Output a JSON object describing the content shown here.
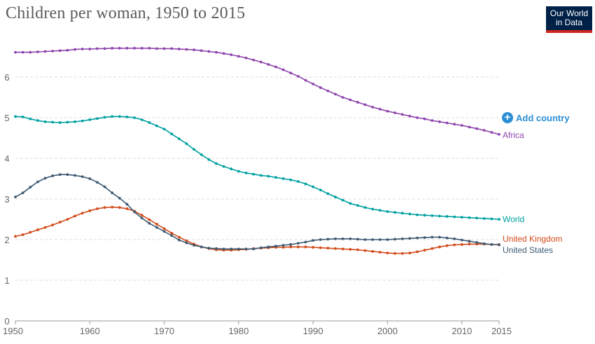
{
  "header": {
    "title": "Children per woman, 1950 to 2015"
  },
  "logo": {
    "line1": "Our World",
    "line2": "in Data"
  },
  "controls": {
    "add_country_label": "Add country",
    "add_icon": "plus-circle-icon"
  },
  "chart_data": {
    "type": "line",
    "title": "Children per woman, 1950 to 2015",
    "xlabel": "",
    "ylabel": "",
    "xlim": [
      1950,
      2015
    ],
    "ylim": [
      0,
      7
    ],
    "x_ticks": [
      1950,
      1960,
      1970,
      1980,
      1990,
      2000,
      2010,
      2015
    ],
    "y_ticks": [
      0,
      1,
      2,
      3,
      4,
      5,
      6
    ],
    "grid": "horizontal-dashed",
    "x": [
      1950,
      1951,
      1952,
      1953,
      1954,
      1955,
      1956,
      1957,
      1958,
      1959,
      1960,
      1961,
      1962,
      1963,
      1964,
      1965,
      1966,
      1967,
      1968,
      1969,
      1970,
      1971,
      1972,
      1973,
      1974,
      1975,
      1976,
      1977,
      1978,
      1979,
      1980,
      1981,
      1982,
      1983,
      1984,
      1985,
      1986,
      1987,
      1988,
      1989,
      1990,
      1991,
      1992,
      1993,
      1994,
      1995,
      1996,
      1997,
      1998,
      1999,
      2000,
      2001,
      2002,
      2003,
      2004,
      2005,
      2006,
      2007,
      2008,
      2009,
      2010,
      2011,
      2012,
      2013,
      2014,
      2015
    ],
    "series": [
      {
        "name": "Africa",
        "color": "#8e44ad",
        "values": [
          6.61,
          6.61,
          6.61,
          6.62,
          6.63,
          6.64,
          6.65,
          6.66,
          6.68,
          6.69,
          6.69,
          6.7,
          6.7,
          6.71,
          6.71,
          6.71,
          6.71,
          6.71,
          6.71,
          6.7,
          6.7,
          6.7,
          6.69,
          6.68,
          6.67,
          6.65,
          6.63,
          6.61,
          6.58,
          6.55,
          6.51,
          6.47,
          6.42,
          6.37,
          6.31,
          6.25,
          6.18,
          6.1,
          6.02,
          5.92,
          5.83,
          5.74,
          5.66,
          5.58,
          5.5,
          5.44,
          5.38,
          5.32,
          5.26,
          5.21,
          5.16,
          5.12,
          5.08,
          5.04,
          5.0,
          4.97,
          4.93,
          4.9,
          4.87,
          4.84,
          4.81,
          4.77,
          4.73,
          4.69,
          4.64,
          4.59
        ]
      },
      {
        "name": "World",
        "color": "#00a0a0",
        "values": [
          5.03,
          5.02,
          4.97,
          4.93,
          4.9,
          4.89,
          4.88,
          4.89,
          4.9,
          4.92,
          4.95,
          4.98,
          5.01,
          5.03,
          5.03,
          5.02,
          5.0,
          4.95,
          4.88,
          4.8,
          4.72,
          4.6,
          4.48,
          4.36,
          4.22,
          4.09,
          3.97,
          3.87,
          3.8,
          3.74,
          3.68,
          3.64,
          3.61,
          3.58,
          3.56,
          3.53,
          3.5,
          3.47,
          3.43,
          3.37,
          3.3,
          3.22,
          3.13,
          3.05,
          2.97,
          2.89,
          2.84,
          2.79,
          2.75,
          2.72,
          2.69,
          2.67,
          2.65,
          2.63,
          2.61,
          2.6,
          2.59,
          2.58,
          2.57,
          2.56,
          2.55,
          2.54,
          2.53,
          2.52,
          2.51,
          2.5
        ]
      },
      {
        "name": "United Kingdom",
        "color": "#d24a18",
        "values": [
          2.08,
          2.12,
          2.18,
          2.24,
          2.3,
          2.36,
          2.43,
          2.5,
          2.58,
          2.65,
          2.71,
          2.76,
          2.79,
          2.8,
          2.79,
          2.76,
          2.7,
          2.6,
          2.49,
          2.38,
          2.27,
          2.16,
          2.06,
          1.97,
          1.89,
          1.82,
          1.78,
          1.75,
          1.74,
          1.74,
          1.75,
          1.76,
          1.78,
          1.79,
          1.8,
          1.81,
          1.81,
          1.82,
          1.82,
          1.82,
          1.81,
          1.8,
          1.79,
          1.78,
          1.77,
          1.76,
          1.75,
          1.73,
          1.71,
          1.69,
          1.67,
          1.66,
          1.66,
          1.67,
          1.7,
          1.74,
          1.78,
          1.82,
          1.85,
          1.87,
          1.88,
          1.89,
          1.89,
          1.89,
          1.88,
          1.88
        ]
      },
      {
        "name": "United States",
        "color": "#3d5a73",
        "values": [
          3.05,
          3.15,
          3.29,
          3.42,
          3.51,
          3.57,
          3.6,
          3.6,
          3.58,
          3.55,
          3.5,
          3.41,
          3.3,
          3.15,
          3.02,
          2.87,
          2.68,
          2.53,
          2.4,
          2.3,
          2.2,
          2.1,
          1.99,
          1.92,
          1.86,
          1.82,
          1.79,
          1.78,
          1.77,
          1.77,
          1.77,
          1.77,
          1.77,
          1.8,
          1.82,
          1.84,
          1.86,
          1.88,
          1.91,
          1.94,
          1.98,
          2.0,
          2.01,
          2.02,
          2.02,
          2.02,
          2.01,
          2.0,
          2.0,
          2.0,
          2.0,
          2.01,
          2.02,
          2.03,
          2.04,
          2.05,
          2.06,
          2.06,
          2.04,
          2.02,
          1.99,
          1.96,
          1.93,
          1.9,
          1.88,
          1.87
        ]
      }
    ]
  }
}
